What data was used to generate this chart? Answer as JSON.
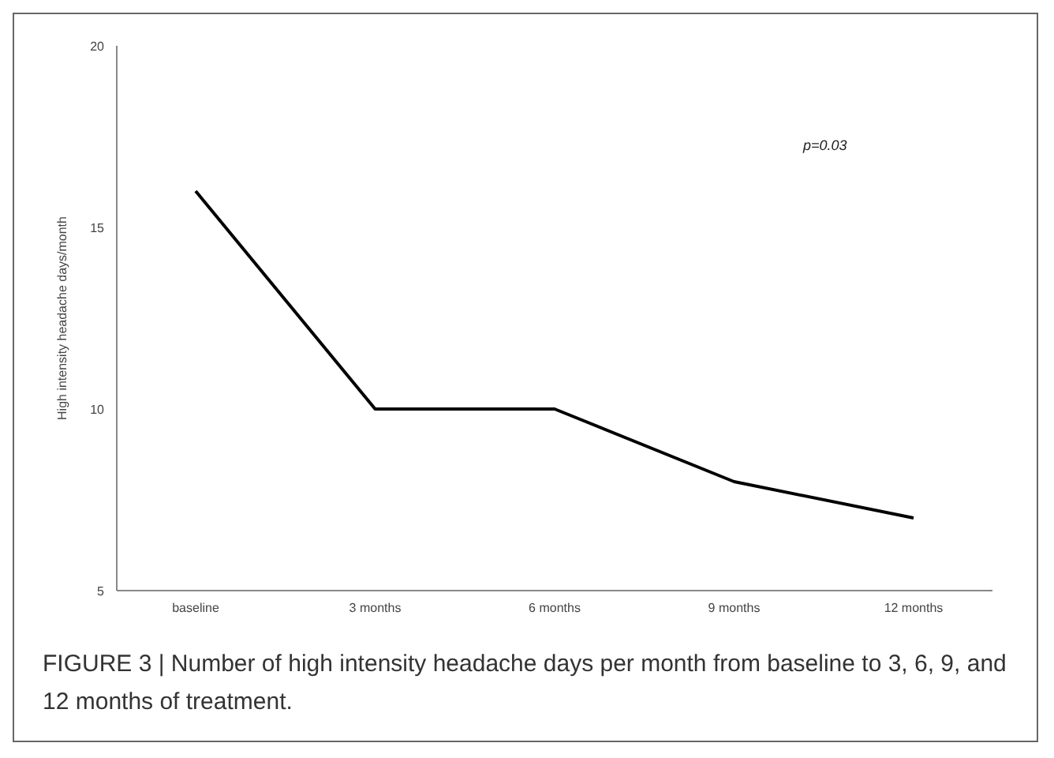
{
  "chart_data": {
    "type": "line",
    "ylabel": "High intensity headache days/month",
    "categories": [
      "baseline",
      "3 months",
      "6 months",
      "9 months",
      "12 months"
    ],
    "series": [
      {
        "color": "#000000",
        "values": [
          16,
          10,
          10,
          8,
          7
        ]
      }
    ],
    "ylim": [
      5,
      20
    ],
    "yticks": [
      5,
      10,
      15,
      20
    ],
    "grid": false,
    "legend": false,
    "marker": "none",
    "line_style": "solid",
    "annotations": [
      "p=0.03",
      "FIGURE 3 | Number of high intensity headache days per month from baseline to 3, 6, 9, and 12 months of treatment."
    ]
  }
}
